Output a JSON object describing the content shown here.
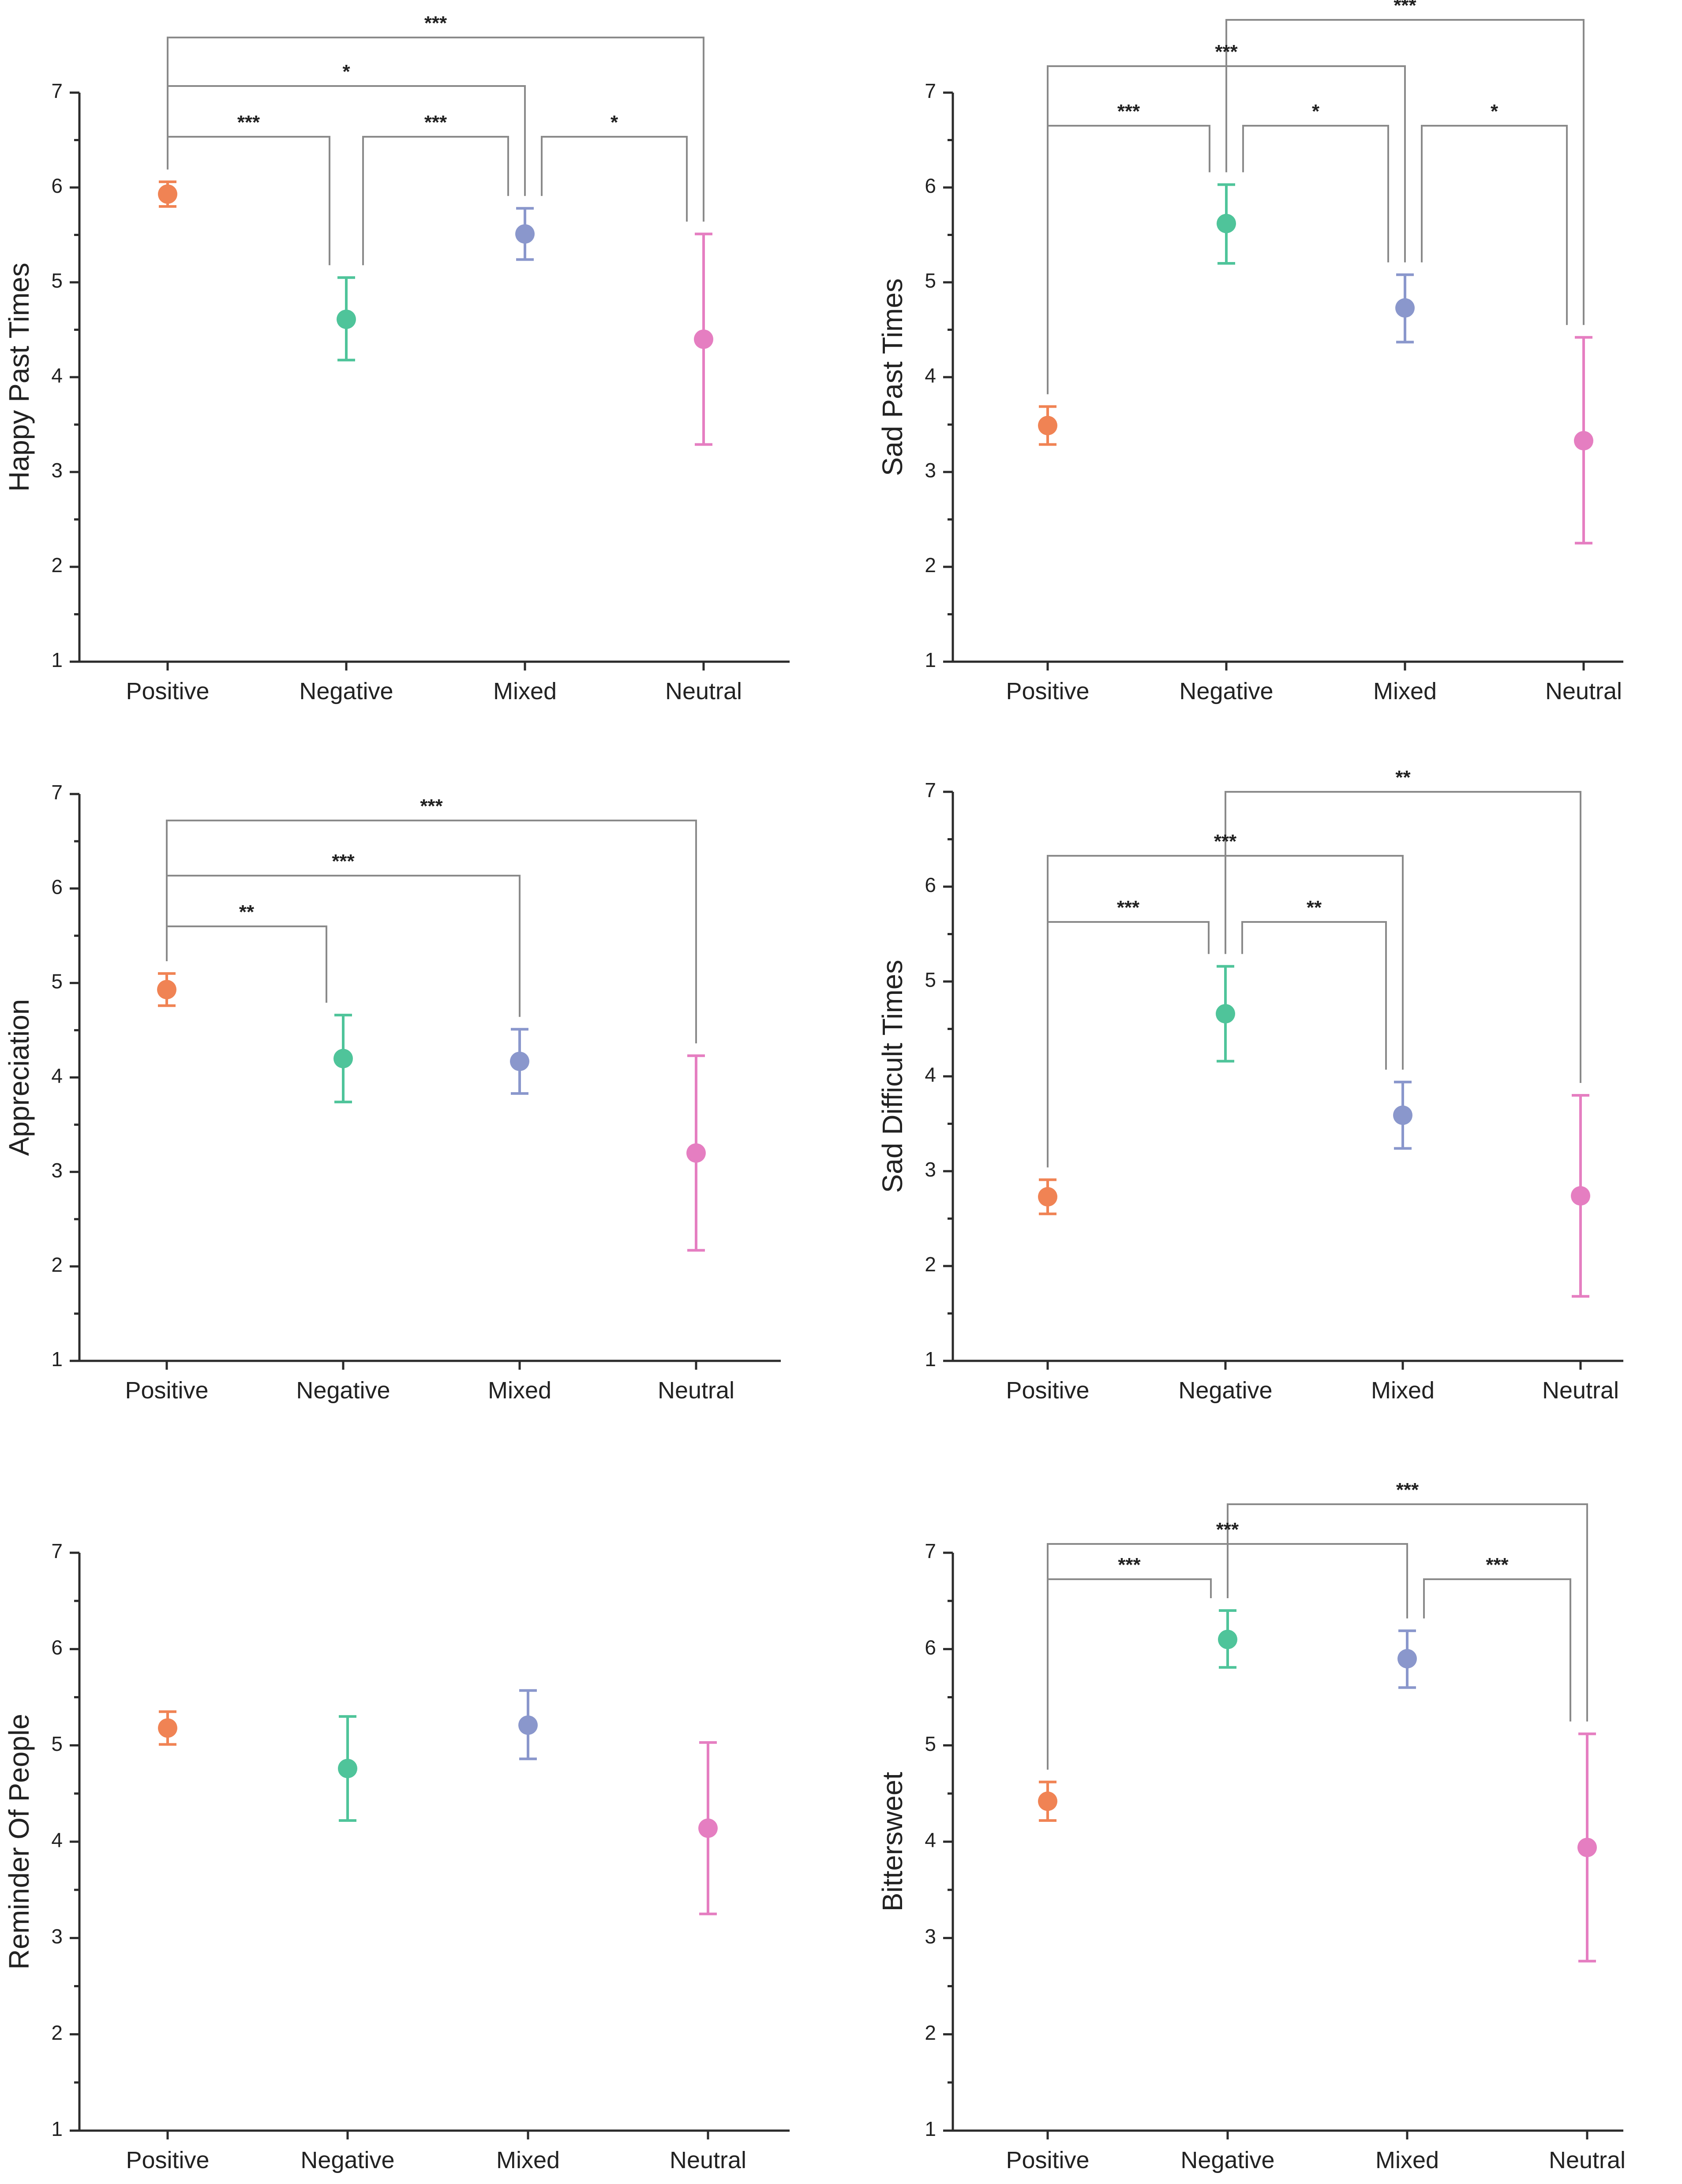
{
  "figure": {
    "description_none": ""
  },
  "chart_data": [
    {
      "type": "scatter",
      "ylabel": "Happy Past Times",
      "xlabel": "",
      "ylim": [
        1,
        7
      ],
      "yticks": [
        1,
        2,
        3,
        4,
        5,
        6,
        7
      ],
      "categories": [
        "Positive",
        "Negative",
        "Mixed",
        "Neutral"
      ],
      "values": [
        5.93,
        4.61,
        5.51,
        4.4
      ],
      "error_low": [
        5.8,
        4.18,
        5.24,
        3.29
      ],
      "error_high": [
        6.06,
        5.05,
        5.78,
        5.51
      ],
      "colors": [
        "#f08354",
        "#4fc49a",
        "#8a97cc",
        "#e57ec1"
      ],
      "significance": [
        {
          "from": 0,
          "to": 3,
          "label": "***",
          "tier": 4
        },
        {
          "from": 0,
          "to": 2,
          "label": "*",
          "tier": 3
        },
        {
          "from": 0,
          "to": 1,
          "label": "***",
          "tier": 2
        },
        {
          "from": 1,
          "to": 2,
          "label": "***",
          "tier": 2
        },
        {
          "from": 2,
          "to": 3,
          "label": "*",
          "tier": 2
        }
      ]
    },
    {
      "type": "scatter",
      "ylabel": "Sad Past Times",
      "xlabel": "",
      "ylim": [
        1,
        7
      ],
      "yticks": [
        1,
        2,
        3,
        4,
        5,
        6,
        7
      ],
      "categories": [
        "Positive",
        "Negative",
        "Mixed",
        "Neutral"
      ],
      "values": [
        3.49,
        5.62,
        4.73,
        3.33
      ],
      "error_low": [
        3.29,
        5.2,
        4.37,
        2.25
      ],
      "error_high": [
        3.69,
        6.03,
        5.08,
        4.42
      ],
      "colors": [
        "#f08354",
        "#4fc49a",
        "#8a97cc",
        "#e57ec1"
      ],
      "significance": [
        {
          "from": 1,
          "to": 3,
          "label": "***",
          "tier": 4
        },
        {
          "from": 0,
          "to": 2,
          "label": "***",
          "tier": 3
        },
        {
          "from": 0,
          "to": 1,
          "label": "***",
          "tier": 2
        },
        {
          "from": 1,
          "to": 2,
          "label": "*",
          "tier": 2
        },
        {
          "from": 2,
          "to": 3,
          "label": "*",
          "tier": 2
        }
      ]
    },
    {
      "type": "scatter",
      "ylabel": "Appreciation",
      "xlabel": "",
      "ylim": [
        1,
        7
      ],
      "yticks": [
        1,
        2,
        3,
        4,
        5,
        6,
        7
      ],
      "categories": [
        "Positive",
        "Negative",
        "Mixed",
        "Neutral"
      ],
      "values": [
        4.93,
        4.2,
        4.17,
        3.2
      ],
      "error_low": [
        4.76,
        3.74,
        3.83,
        2.17
      ],
      "error_high": [
        5.1,
        4.66,
        4.51,
        4.23
      ],
      "colors": [
        "#f08354",
        "#4fc49a",
        "#8a97cc",
        "#e57ec1"
      ],
      "significance": [
        {
          "from": 0,
          "to": 3,
          "label": "***",
          "tier": 4
        },
        {
          "from": 0,
          "to": 2,
          "label": "***",
          "tier": 3
        },
        {
          "from": 0,
          "to": 1,
          "label": "**",
          "tier": 2
        }
      ]
    },
    {
      "type": "scatter",
      "ylabel": "Sad Difficult Times",
      "xlabel": "",
      "ylim": [
        1,
        7
      ],
      "yticks": [
        1,
        2,
        3,
        4,
        5,
        6,
        7
      ],
      "categories": [
        "Positive",
        "Negative",
        "Mixed",
        "Neutral"
      ],
      "values": [
        2.73,
        4.66,
        3.59,
        2.74
      ],
      "error_low": [
        2.55,
        4.16,
        3.24,
        1.68
      ],
      "error_high": [
        2.91,
        5.16,
        3.94,
        3.8
      ],
      "colors": [
        "#f08354",
        "#4fc49a",
        "#8a97cc",
        "#e57ec1"
      ],
      "significance": [
        {
          "from": 1,
          "to": 3,
          "label": "**",
          "tier": 4
        },
        {
          "from": 0,
          "to": 2,
          "label": "***",
          "tier": 3
        },
        {
          "from": 0,
          "to": 1,
          "label": "***",
          "tier": 2
        },
        {
          "from": 1,
          "to": 2,
          "label": "**",
          "tier": 2
        }
      ]
    },
    {
      "type": "scatter",
      "ylabel": "Reminder Of People",
      "xlabel": "",
      "ylim": [
        1,
        7
      ],
      "yticks": [
        1,
        2,
        3,
        4,
        5,
        6,
        7
      ],
      "categories": [
        "Positive",
        "Negative",
        "Mixed",
        "Neutral"
      ],
      "values": [
        5.18,
        4.76,
        5.21,
        4.14
      ],
      "error_low": [
        5.01,
        4.22,
        4.86,
        3.25
      ],
      "error_high": [
        5.35,
        5.3,
        5.57,
        5.03
      ],
      "colors": [
        "#f08354",
        "#4fc49a",
        "#8a97cc",
        "#e57ec1"
      ],
      "significance": []
    },
    {
      "type": "scatter",
      "ylabel": "Bittersweet",
      "xlabel": "",
      "ylim": [
        1,
        7
      ],
      "yticks": [
        1,
        2,
        3,
        4,
        5,
        6,
        7
      ],
      "categories": [
        "Positive",
        "Negative",
        "Mixed",
        "Neutral"
      ],
      "values": [
        4.42,
        6.1,
        5.9,
        3.94
      ],
      "error_low": [
        4.22,
        5.81,
        5.6,
        2.76
      ],
      "error_high": [
        4.62,
        6.4,
        6.19,
        5.12
      ],
      "colors": [
        "#f08354",
        "#4fc49a",
        "#8a97cc",
        "#e57ec1"
      ],
      "significance": [
        {
          "from": 1,
          "to": 3,
          "label": "***",
          "tier": 4
        },
        {
          "from": 0,
          "to": 2,
          "label": "***",
          "tier": 3
        },
        {
          "from": 0,
          "to": 1,
          "label": "***",
          "tier": 2
        },
        {
          "from": 2,
          "to": 3,
          "label": "***",
          "tier": 2
        }
      ]
    }
  ]
}
